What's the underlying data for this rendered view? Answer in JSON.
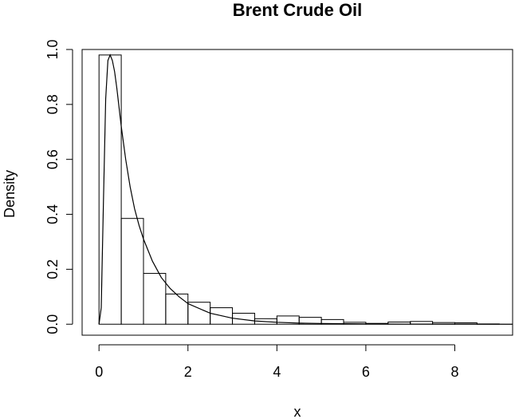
{
  "chart_data": {
    "type": "histogram",
    "title": "Brent Crude Oil",
    "xlabel": "x",
    "ylabel": "Density",
    "xlim": [
      -0.38,
      9.3
    ],
    "ylim": [
      -0.04,
      1.0
    ],
    "x_ticks": [
      0,
      2,
      4,
      6,
      8
    ],
    "y_ticks": [
      0.0,
      0.2,
      0.4,
      0.6,
      0.8,
      1.0
    ],
    "x_tick_labels": [
      "0",
      "2",
      "4",
      "6",
      "8"
    ],
    "y_tick_labels": [
      "0.0",
      "0.2",
      "0.4",
      "0.6",
      "0.8",
      "1.0"
    ],
    "bin_width": 0.5,
    "bins": [
      {
        "x0": 0.0,
        "x1": 0.5,
        "density": 0.98
      },
      {
        "x0": 0.5,
        "x1": 1.0,
        "density": 0.385
      },
      {
        "x0": 1.0,
        "x1": 1.5,
        "density": 0.185
      },
      {
        "x0": 1.5,
        "x1": 2.0,
        "density": 0.11
      },
      {
        "x0": 2.0,
        "x1": 2.5,
        "density": 0.08
      },
      {
        "x0": 2.5,
        "x1": 3.0,
        "density": 0.06
      },
      {
        "x0": 3.0,
        "x1": 3.5,
        "density": 0.04
      },
      {
        "x0": 3.5,
        "x1": 4.0,
        "density": 0.02
      },
      {
        "x0": 4.0,
        "x1": 4.5,
        "density": 0.03
      },
      {
        "x0": 4.5,
        "x1": 5.0,
        "density": 0.025
      },
      {
        "x0": 5.0,
        "x1": 5.5,
        "density": 0.017
      },
      {
        "x0": 5.5,
        "x1": 6.0,
        "density": 0.007
      },
      {
        "x0": 6.0,
        "x1": 6.5,
        "density": 0.003
      },
      {
        "x0": 6.5,
        "x1": 7.0,
        "density": 0.008
      },
      {
        "x0": 7.0,
        "x1": 7.5,
        "density": 0.01
      },
      {
        "x0": 7.5,
        "x1": 8.0,
        "density": 0.006
      },
      {
        "x0": 8.0,
        "x1": 8.5,
        "density": 0.005
      },
      {
        "x0": 8.5,
        "x1": 9.0,
        "density": 0.001
      }
    ],
    "density_curve": {
      "x": [
        0.0,
        0.05,
        0.1,
        0.15,
        0.2,
        0.25,
        0.3,
        0.35,
        0.4,
        0.45,
        0.5,
        0.6,
        0.7,
        0.8,
        0.9,
        1.0,
        1.2,
        1.4,
        1.6,
        1.8,
        2.0,
        2.5,
        3.0,
        3.5,
        4.0,
        4.5,
        5.0,
        6.0,
        7.0,
        8.0,
        9.3
      ],
      "y": [
        0.0,
        0.06,
        0.45,
        0.82,
        0.96,
        0.98,
        0.96,
        0.92,
        0.86,
        0.79,
        0.72,
        0.6,
        0.5,
        0.42,
        0.36,
        0.31,
        0.23,
        0.17,
        0.13,
        0.1,
        0.075,
        0.04,
        0.022,
        0.012,
        0.007,
        0.004,
        0.0025,
        0.001,
        0.0005,
        0.0002,
        0.0
      ]
    },
    "grid": false,
    "legend": "none"
  }
}
